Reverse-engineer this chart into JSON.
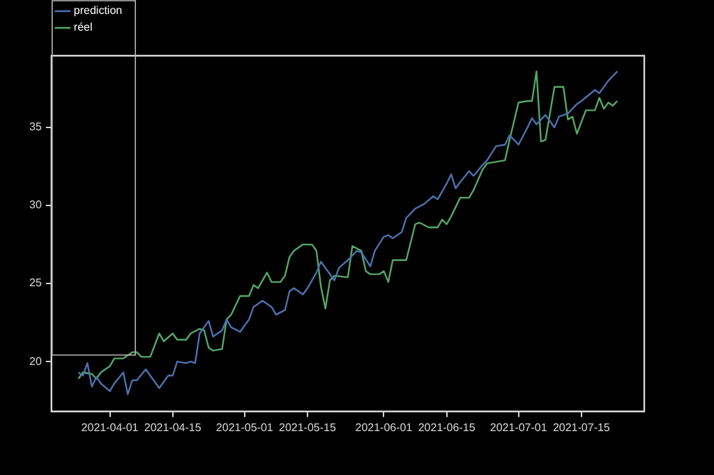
{
  "chart_data": {
    "type": "line",
    "xlim": [
      "2021-03-19",
      "2021-07-29"
    ],
    "xticks": [
      "2021-04-01",
      "2021-04-15",
      "2021-05-01",
      "2021-05-15",
      "2021-06-01",
      "2021-06-15",
      "2021-07-01",
      "2021-07-15"
    ],
    "ylim": [
      16.8,
      39.6
    ],
    "yticks": [
      20,
      25,
      30,
      35
    ],
    "grid": false,
    "legend": "top left",
    "marker": "none",
    "line_style": "solid",
    "series": [
      {
        "name": "prediction",
        "color": "#4c72b0",
        "x": [
          "2021-03-25",
          "2021-03-26",
          "2021-03-27",
          "2021-03-28",
          "2021-03-29",
          "2021-03-30",
          "2021-04-01",
          "2021-04-02",
          "2021-04-04",
          "2021-04-05",
          "2021-04-06",
          "2021-04-07",
          "2021-04-09",
          "2021-04-10",
          "2021-04-12",
          "2021-04-14",
          "2021-04-15",
          "2021-04-16",
          "2021-04-18",
          "2021-04-19",
          "2021-04-20",
          "2021-04-21",
          "2021-04-23",
          "2021-04-24",
          "2021-04-26",
          "2021-04-27",
          "2021-04-28",
          "2021-04-30",
          "2021-05-02",
          "2021-05-03",
          "2021-05-05",
          "2021-05-07",
          "2021-05-08",
          "2021-05-10",
          "2021-05-11",
          "2021-05-12",
          "2021-05-14",
          "2021-05-15",
          "2021-05-17",
          "2021-05-18",
          "2021-05-19",
          "2021-05-21",
          "2021-05-22",
          "2021-05-24",
          "2021-05-26",
          "2021-05-27",
          "2021-05-29",
          "2021-05-30",
          "2021-06-01",
          "2021-06-02",
          "2021-06-03",
          "2021-06-05",
          "2021-06-06",
          "2021-06-08",
          "2021-06-10",
          "2021-06-12",
          "2021-06-13",
          "2021-06-15",
          "2021-06-16",
          "2021-06-17",
          "2021-06-18",
          "2021-06-20",
          "2021-06-21",
          "2021-06-23",
          "2021-06-24",
          "2021-06-26",
          "2021-06-28",
          "2021-06-29",
          "2021-07-01",
          "2021-07-03",
          "2021-07-04",
          "2021-07-05",
          "2021-07-07",
          "2021-07-09",
          "2021-07-10",
          "2021-07-12",
          "2021-07-14",
          "2021-07-15",
          "2021-07-18",
          "2021-07-19",
          "2021-07-21",
          "2021-07-23"
        ],
        "values": [
          19.3,
          19.1,
          19.9,
          18.4,
          19.0,
          18.6,
          18.1,
          18.6,
          19.3,
          17.9,
          18.8,
          18.8,
          19.5,
          19.1,
          18.3,
          19.1,
          19.1,
          20.0,
          19.9,
          20.0,
          19.9,
          21.8,
          22.6,
          21.6,
          22.0,
          22.7,
          22.2,
          21.9,
          22.7,
          23.5,
          23.9,
          23.5,
          23.0,
          23.3,
          24.5,
          24.7,
          24.3,
          24.7,
          25.7,
          26.4,
          26.0,
          25.2,
          26.0,
          26.5,
          27.1,
          27.0,
          26.1,
          27.1,
          28.0,
          28.1,
          27.9,
          28.3,
          29.2,
          29.8,
          30.1,
          30.6,
          30.4,
          31.4,
          32.0,
          31.1,
          31.5,
          32.2,
          31.9,
          32.6,
          32.9,
          33.8,
          33.9,
          34.5,
          33.9,
          35.0,
          35.6,
          35.2,
          35.8,
          35.0,
          35.7,
          35.9,
          36.5,
          36.7,
          37.4,
          37.2,
          38.0,
          38.6
        ]
      },
      {
        "name": "réel",
        "color": "#55a868",
        "x": [
          "2021-03-25",
          "2021-03-26",
          "2021-03-28",
          "2021-03-29",
          "2021-03-30",
          "2021-04-01",
          "2021-04-02",
          "2021-04-04",
          "2021-04-06",
          "2021-04-07",
          "2021-04-08",
          "2021-04-10",
          "2021-04-12",
          "2021-04-13",
          "2021-04-15",
          "2021-04-16",
          "2021-04-18",
          "2021-04-19",
          "2021-04-21",
          "2021-04-22",
          "2021-04-23",
          "2021-04-24",
          "2021-04-26",
          "2021-04-27",
          "2021-04-28",
          "2021-04-30",
          "2021-05-02",
          "2021-05-03",
          "2021-05-04",
          "2021-05-06",
          "2021-05-07",
          "2021-05-09",
          "2021-05-10",
          "2021-05-11",
          "2021-05-12",
          "2021-05-14",
          "2021-05-16",
          "2021-05-17",
          "2021-05-18",
          "2021-05-19",
          "2021-05-20",
          "2021-05-21",
          "2021-05-24",
          "2021-05-25",
          "2021-05-27",
          "2021-05-28",
          "2021-05-29",
          "2021-05-31",
          "2021-06-01",
          "2021-06-02",
          "2021-06-03",
          "2021-06-06",
          "2021-06-08",
          "2021-06-09",
          "2021-06-11",
          "2021-06-13",
          "2021-06-14",
          "2021-06-15",
          "2021-06-16",
          "2021-06-18",
          "2021-06-20",
          "2021-06-21",
          "2021-06-23",
          "2021-06-24",
          "2021-06-26",
          "2021-06-28",
          "2021-06-29",
          "2021-07-01",
          "2021-07-03",
          "2021-07-04",
          "2021-07-05",
          "2021-07-06",
          "2021-07-07",
          "2021-07-09",
          "2021-07-11",
          "2021-07-12",
          "2021-07-13",
          "2021-07-14",
          "2021-07-16",
          "2021-07-18",
          "2021-07-19",
          "2021-07-20",
          "2021-07-21",
          "2021-07-22",
          "2021-07-23"
        ],
        "values": [
          18.9,
          19.3,
          19.2,
          18.9,
          19.3,
          19.7,
          20.2,
          20.2,
          20.6,
          20.6,
          20.3,
          20.3,
          21.8,
          21.3,
          21.8,
          21.4,
          21.4,
          21.8,
          22.1,
          22.0,
          20.9,
          20.7,
          20.8,
          22.7,
          23.0,
          24.2,
          24.2,
          24.9,
          24.7,
          25.7,
          25.1,
          25.1,
          25.5,
          26.7,
          27.1,
          27.5,
          27.5,
          27.1,
          24.8,
          23.4,
          25.2,
          25.5,
          25.4,
          27.4,
          27.1,
          25.8,
          25.6,
          25.6,
          25.8,
          25.1,
          26.5,
          26.5,
          28.8,
          28.9,
          28.6,
          28.6,
          29.1,
          28.8,
          29.3,
          30.5,
          30.5,
          31.0,
          32.3,
          32.7,
          32.8,
          32.9,
          34.2,
          36.6,
          36.7,
          36.7,
          38.6,
          34.1,
          34.2,
          37.6,
          37.6,
          35.5,
          35.7,
          34.6,
          36.1,
          36.1,
          36.9,
          36.2,
          36.6,
          36.4,
          36.7
        ]
      }
    ]
  }
}
